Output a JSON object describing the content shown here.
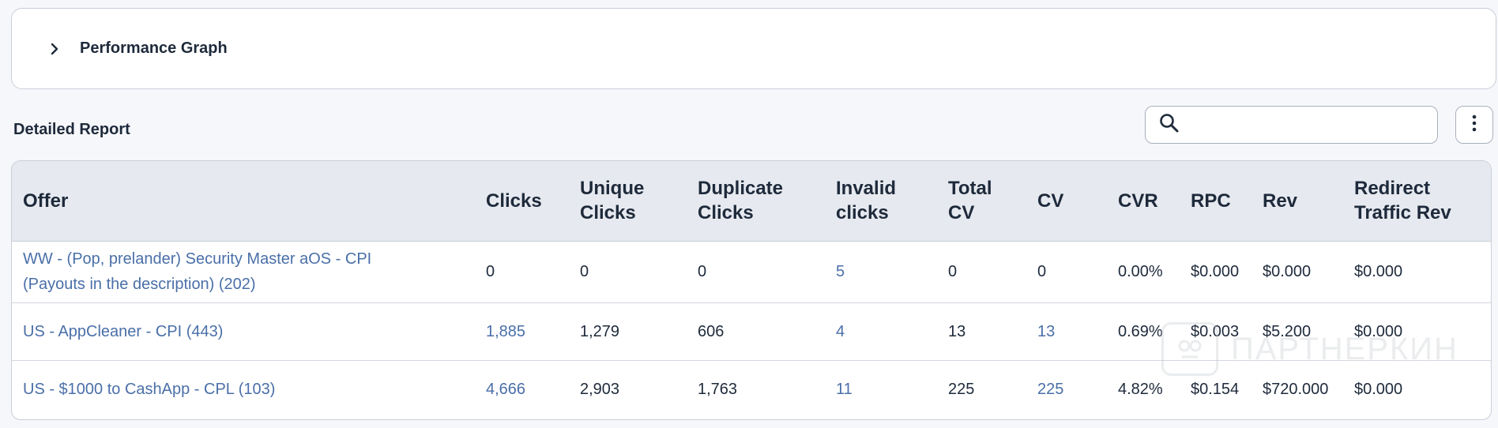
{
  "performance_graph": {
    "title": "Performance Graph",
    "icon": "chevron-right-icon"
  },
  "report": {
    "title": "Detailed Report",
    "search": {
      "value": "",
      "placeholder": "",
      "icon": "search-icon"
    },
    "more_icon": "kebab-menu-icon"
  },
  "table": {
    "headers": [
      {
        "line1": "Offer",
        "line2": ""
      },
      {
        "line1": "Clicks",
        "line2": ""
      },
      {
        "line1": "Unique",
        "line2": "Clicks"
      },
      {
        "line1": "Duplicate",
        "line2": "Clicks"
      },
      {
        "line1": "Invalid",
        "line2": "clicks"
      },
      {
        "line1": "Total",
        "line2": "CV"
      },
      {
        "line1": "CV",
        "line2": ""
      },
      {
        "line1": "CVR",
        "line2": ""
      },
      {
        "line1": "RPC",
        "line2": ""
      },
      {
        "line1": "Rev",
        "line2": ""
      },
      {
        "line1": "Redirect",
        "line2": "Traffic Rev"
      }
    ],
    "rows": [
      {
        "offer_line1": "WW - (Pop, prelander) Security Master aOS - CPI",
        "offer_line2": "(Payouts in the description) (202)",
        "clicks": "0",
        "unique_clicks": "0",
        "duplicate_clicks": "0",
        "invalid_clicks": "5",
        "total_cv": "0",
        "cv": "0",
        "cvr": "0.00%",
        "rpc": "$0.000",
        "rev": "$0.000",
        "redirect_traffic_rev": "$0.000"
      },
      {
        "offer_line1": "US - AppCleaner - CPI (443)",
        "offer_line2": "",
        "clicks": "1,885",
        "unique_clicks": "1,279",
        "duplicate_clicks": "606",
        "invalid_clicks": "4",
        "total_cv": "13",
        "cv": "13",
        "cvr": "0.69%",
        "rpc": "$0.003",
        "rev": "$5.200",
        "redirect_traffic_rev": "$0.000"
      },
      {
        "offer_line1": "US - $1000 to CashApp - CPL (103)",
        "offer_line2": "",
        "clicks": "4,666",
        "unique_clicks": "2,903",
        "duplicate_clicks": "1,763",
        "invalid_clicks": "11",
        "total_cv": "225",
        "cv": "225",
        "cvr": "4.82%",
        "rpc": "$0.154",
        "rev": "$720.000",
        "redirect_traffic_rev": "$0.000"
      }
    ]
  },
  "watermark": {
    "text": "ПАРТНЕРКИН"
  },
  "colors": {
    "link": "#4a6fa8",
    "text": "#1e2a3b",
    "header_bg": "#e6e9ef",
    "border": "#c9ced8"
  }
}
